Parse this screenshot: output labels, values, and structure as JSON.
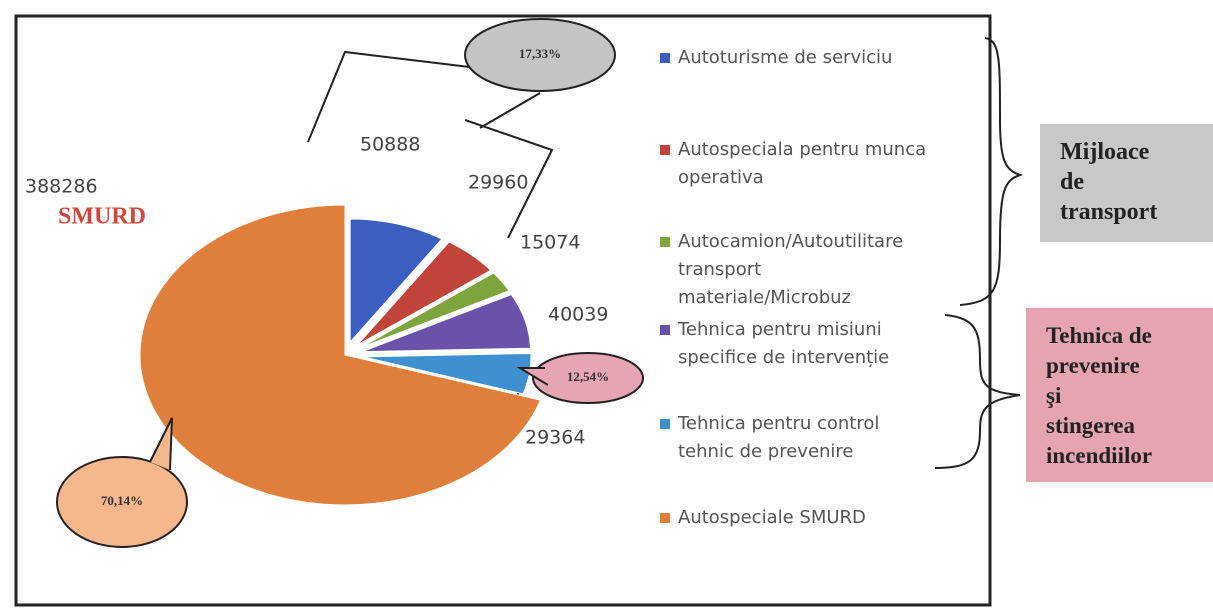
{
  "chart_data": {
    "type": "pie",
    "categories": [
      "Autoturisme de serviciu",
      "Autospeciala pentru munca operativa",
      "Autocamion/Autoutilitare transport materiale/Microbuz",
      "Tehnica pentru misiuni specifice de intervenție",
      "Tehnica pentru control tehnic de prevenire",
      "Autospeciale SMURD"
    ],
    "values": [
      50888,
      29960,
      15074,
      40039,
      29364,
      388286
    ],
    "colors": [
      "#3b5fc0",
      "#c0443a",
      "#7ea53d",
      "#6a52aa",
      "#3f90d0",
      "#e07f3c"
    ],
    "annotations": [
      "SMURD",
      "17,33%",
      "12,54%",
      "70,14%"
    ],
    "groups": [
      "Mijloace de transport",
      "Tehnica de prevenire şi stingerea incendiilor"
    ]
  }
}
